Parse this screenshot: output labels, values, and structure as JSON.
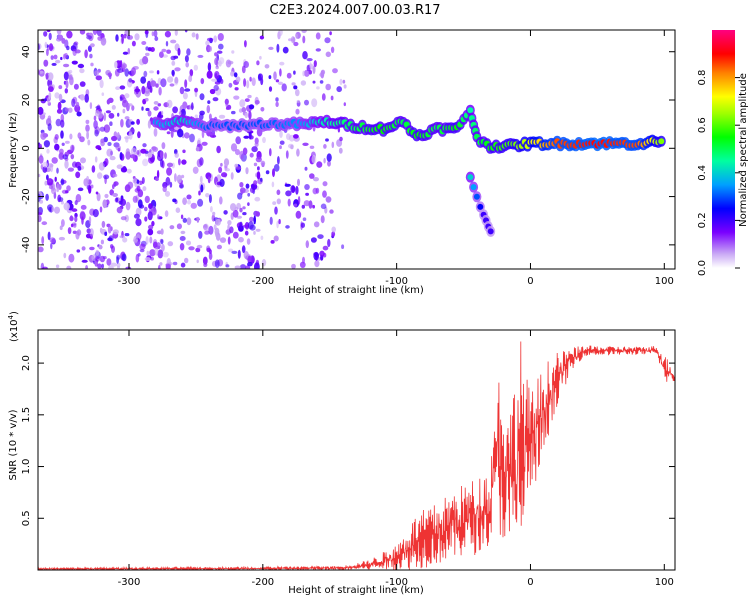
{
  "title": "C2E3.2024.007.00.03.R17",
  "colors": {
    "snr_line": "#ee3333",
    "axis": "#000000"
  },
  "chart_data": [
    {
      "type": "heatmap",
      "title": "C2E3.2024.007.00.03.R17",
      "xlabel": "Height of straight line (km)",
      "ylabel": "Frequency (Hz)",
      "xlim": [
        -368,
        108
      ],
      "ylim": [
        -50,
        49
      ],
      "xticks": [
        -300,
        -200,
        -100,
        0,
        100
      ],
      "xtick_labels": [
        "-300",
        "-200",
        "-100",
        "0",
        "100"
      ],
      "yticks": [
        -40,
        -20,
        0,
        20,
        40
      ],
      "ytick_labels": [
        "-40",
        "-20",
        "0",
        "20",
        "40"
      ],
      "colorbar": {
        "label": "Normalized spectral amplitude",
        "range": [
          0.0,
          1.0
        ],
        "ticks": [
          0.0,
          0.2,
          0.4,
          0.6,
          0.8
        ],
        "tick_labels": [
          "0.0",
          "0.2",
          "0.4",
          "0.6",
          "0.8"
        ]
      },
      "ridge": [
        {
          "x": -280,
          "f": 10,
          "a": 0.35
        },
        {
          "x": -260,
          "f": 11,
          "a": 0.4
        },
        {
          "x": -240,
          "f": 9,
          "a": 0.3
        },
        {
          "x": -200,
          "f": 10,
          "a": 0.3
        },
        {
          "x": -170,
          "f": 10,
          "a": 0.35
        },
        {
          "x": -150,
          "f": 11,
          "a": 0.45
        },
        {
          "x": -130,
          "f": 9,
          "a": 0.5
        },
        {
          "x": -110,
          "f": 8,
          "a": 0.55
        },
        {
          "x": -95,
          "f": 11,
          "a": 0.5
        },
        {
          "x": -85,
          "f": 5,
          "a": 0.55
        },
        {
          "x": -70,
          "f": 8,
          "a": 0.5
        },
        {
          "x": -55,
          "f": 8,
          "a": 0.55
        },
        {
          "x": -45,
          "f": 16,
          "a": 0.45
        },
        {
          "x": -40,
          "f": 4,
          "a": 0.5
        },
        {
          "x": -30,
          "f": 1,
          "a": 0.55
        },
        {
          "x": -15,
          "f": 1,
          "a": 0.6
        },
        {
          "x": 0,
          "f": 2,
          "a": 0.7
        },
        {
          "x": 20,
          "f": 2,
          "a": 0.85
        },
        {
          "x": 50,
          "f": 2,
          "a": 0.9
        },
        {
          "x": 80,
          "f": 2,
          "a": 0.85
        },
        {
          "x": 100,
          "f": 3,
          "a": 0.6
        }
      ],
      "branch": [
        {
          "x": -45,
          "f": -12,
          "a": 0.4
        },
        {
          "x": -35,
          "f": -28,
          "a": 0.2
        },
        {
          "x": -28,
          "f": -36,
          "a": 0.2
        }
      ]
    },
    {
      "type": "line",
      "title": "",
      "xlabel": "Height of straight line (km)",
      "ylabel": "SNR (10 * v/v)",
      "y_scale_label": "(x10",
      "y_scale_exp": "4",
      "y_scale_close": ")",
      "xlim": [
        -368,
        108
      ],
      "ylim": [
        0,
        2.32
      ],
      "xticks": [
        -300,
        -200,
        -100,
        0,
        100
      ],
      "xtick_labels": [
        "-300",
        "-200",
        "-100",
        "0",
        "100"
      ],
      "yticks": [
        0.5,
        1.0,
        1.5,
        2.0
      ],
      "ytick_labels": [
        "0.5",
        "1.0",
        "1.5",
        "2.0"
      ],
      "series": [
        {
          "name": "SNR",
          "envelope": [
            {
              "x": -368,
              "lo": 0.0,
              "hi": 0.02
            },
            {
              "x": -200,
              "lo": 0.0,
              "hi": 0.03
            },
            {
              "x": -140,
              "lo": 0.0,
              "hi": 0.04
            },
            {
              "x": -120,
              "lo": 0.0,
              "hi": 0.1
            },
            {
              "x": -100,
              "lo": 0.0,
              "hi": 0.25
            },
            {
              "x": -85,
              "lo": 0.0,
              "hi": 0.55
            },
            {
              "x": -70,
              "lo": 0.05,
              "hi": 0.65
            },
            {
              "x": -55,
              "lo": 0.1,
              "hi": 0.8
            },
            {
              "x": -40,
              "lo": 0.15,
              "hi": 0.9
            },
            {
              "x": -30,
              "lo": 0.25,
              "hi": 1.0
            },
            {
              "x": -25,
              "lo": 0.4,
              "hi": 2.0
            },
            {
              "x": -15,
              "lo": 0.05,
              "hi": 1.6
            },
            {
              "x": -8,
              "lo": 0.0,
              "hi": 2.3
            },
            {
              "x": 0,
              "lo": 0.7,
              "hi": 1.7
            },
            {
              "x": 10,
              "lo": 1.0,
              "hi": 2.0
            },
            {
              "x": 20,
              "lo": 1.6,
              "hi": 2.1
            },
            {
              "x": 30,
              "lo": 1.9,
              "hi": 2.15
            },
            {
              "x": 40,
              "lo": 2.07,
              "hi": 2.17
            },
            {
              "x": 80,
              "lo": 2.08,
              "hi": 2.16
            },
            {
              "x": 95,
              "lo": 2.07,
              "hi": 2.17
            },
            {
              "x": 100,
              "lo": 1.8,
              "hi": 2.1
            },
            {
              "x": 108,
              "lo": 1.82,
              "hi": 1.9
            }
          ]
        }
      ]
    }
  ]
}
